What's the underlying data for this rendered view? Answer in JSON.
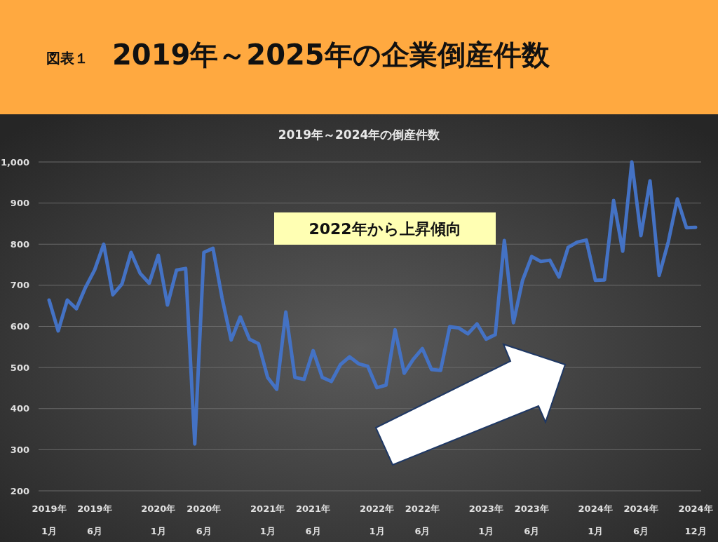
{
  "chart_data": {
    "type": "line",
    "title": "2019年～2025年の企業倒産件数",
    "subtitle": "2019年～2024年の倒産件数",
    "annotations": [
      "図表１",
      {
        "text": "2022年から上昇傾向"
      }
    ],
    "categories": [
      "2019年\n1月",
      null,
      null,
      null,
      null,
      "2019年\n6月",
      null,
      null,
      null,
      null,
      null,
      null,
      "2020年\n1月",
      null,
      null,
      null,
      null,
      "2020年\n6月",
      null,
      null,
      null,
      null,
      null,
      null,
      "2021年\n1月",
      null,
      null,
      null,
      null,
      "2021年\n6月",
      null,
      null,
      null,
      null,
      null,
      null,
      "2022年\n1月",
      null,
      null,
      null,
      null,
      "2022年\n6月",
      null,
      null,
      null,
      null,
      null,
      null,
      "2023年\n1月",
      null,
      null,
      null,
      null,
      "2023年\n6月",
      null,
      null,
      null,
      null,
      null,
      null,
      "2024年\n1月",
      null,
      null,
      null,
      null,
      "2024年\n6月",
      null,
      null,
      null,
      null,
      null,
      "2024年\n12月"
    ],
    "series": [
      {
        "color": "#4472c4",
        "values": [
          664,
          589,
          664,
          643,
          695,
          737,
          800,
          677,
          703,
          780,
          729,
          705,
          773,
          652,
          737,
          741,
          314,
          780,
          790,
          669,
          567,
          623,
          569,
          558,
          476,
          447,
          635,
          476,
          471,
          541,
          476,
          466,
          507,
          526,
          509,
          503,
          451,
          457,
          592,
          486,
          520,
          546,
          495,
          493,
          599,
          596,
          582,
          606,
          569,
          580,
          809,
          609,
          712,
          770,
          758,
          761,
          720,
          792,
          805,
          810,
          712,
          713,
          906,
          783,
          1000,
          821,
          954,
          724,
          805,
          910,
          840,
          841
        ]
      }
    ],
    "ylim": [
      200,
      1000
    ],
    "yticks": [
      200,
      300,
      400,
      500,
      600,
      700,
      800,
      900,
      {
        "value": 1000,
        "label": "1,000"
      }
    ],
    "grid": "y",
    "marker": "none",
    "line_style": "solid"
  }
}
